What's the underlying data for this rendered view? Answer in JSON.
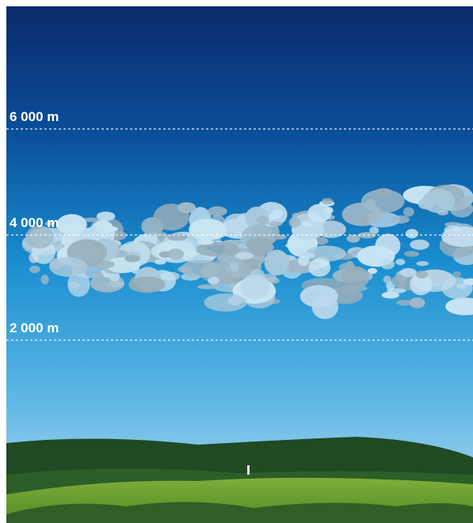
{
  "altitude_labels": [
    "6 000 m",
    "4 000 m",
    "2 000 m"
  ]
}
